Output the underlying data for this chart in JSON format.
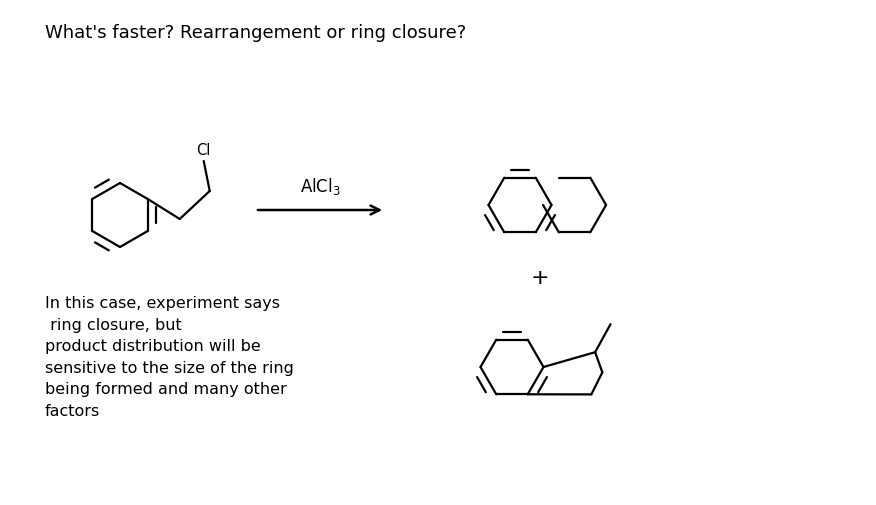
{
  "title": "What's faster? Rearrangement or ring closure?",
  "catalyst": "AlCl$_3$",
  "plus_sign": "+",
  "explanation": "In this case, experiment says\n ring closure, but\nproduct distribution will be\nsensitive to the size of the ring\nbeing formed and many other\nfactors",
  "bg_color": "#ffffff",
  "text_color": "#000000",
  "line_color": "#000000",
  "title_fontsize": 13,
  "explanation_fontsize": 11.5,
  "catalyst_fontsize": 12
}
